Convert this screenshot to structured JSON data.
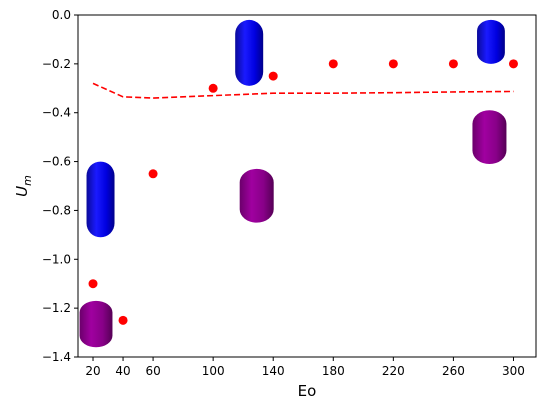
{
  "chart_data": {
    "type": "scatter",
    "xlabel": "Eo",
    "ylabel": "U_m",
    "ylabel_base": "U",
    "ylabel_sub": "m",
    "xlim": [
      10,
      315
    ],
    "ylim": [
      -1.4,
      0.0
    ],
    "xticks": [
      20,
      40,
      60,
      100,
      140,
      180,
      220,
      260,
      300
    ],
    "yticks": [
      0.0,
      -0.2,
      -0.4,
      -0.6,
      -0.8,
      -1.0,
      -1.2,
      -1.4
    ],
    "ytick_labels": [
      "0.0",
      "−0.2",
      "−0.4",
      "−0.6",
      "−0.8",
      "−1.0",
      "−1.2",
      "−1.4"
    ],
    "grid": false,
    "series": [
      {
        "kind": "scatter",
        "color": "#ff0000",
        "x": [
          20,
          40,
          60,
          100,
          140,
          180,
          220,
          260,
          300
        ],
        "y": [
          -1.1,
          -1.25,
          -0.65,
          -0.3,
          -0.25,
          -0.2,
          -0.2,
          -0.2,
          -0.2
        ]
      },
      {
        "kind": "line",
        "style": "dashed",
        "color": "#ff0000",
        "x": [
          20,
          40,
          60,
          100,
          140,
          180,
          220,
          260,
          300
        ],
        "y": [
          -0.28,
          -0.335,
          -0.34,
          -0.33,
          -0.32,
          -0.32,
          -0.318,
          -0.315,
          -0.313
        ]
      }
    ],
    "bubble_images": [
      {
        "color": "blue",
        "x": 25,
        "y_top": -0.6,
        "y_bottom": -0.91
      },
      {
        "color": "purple",
        "x": 22,
        "y_top": -1.17,
        "y_bottom": -1.36
      },
      {
        "color": "blue",
        "x": 124,
        "y_top": -0.02,
        "y_bottom": -0.29
      },
      {
        "color": "purple",
        "x": 129,
        "y_top": -0.63,
        "y_bottom": -0.85
      },
      {
        "color": "blue",
        "x": 285,
        "y_top": -0.02,
        "y_bottom": -0.2
      },
      {
        "color": "purple",
        "x": 284,
        "y_top": -0.39,
        "y_bottom": -0.61
      }
    ]
  }
}
